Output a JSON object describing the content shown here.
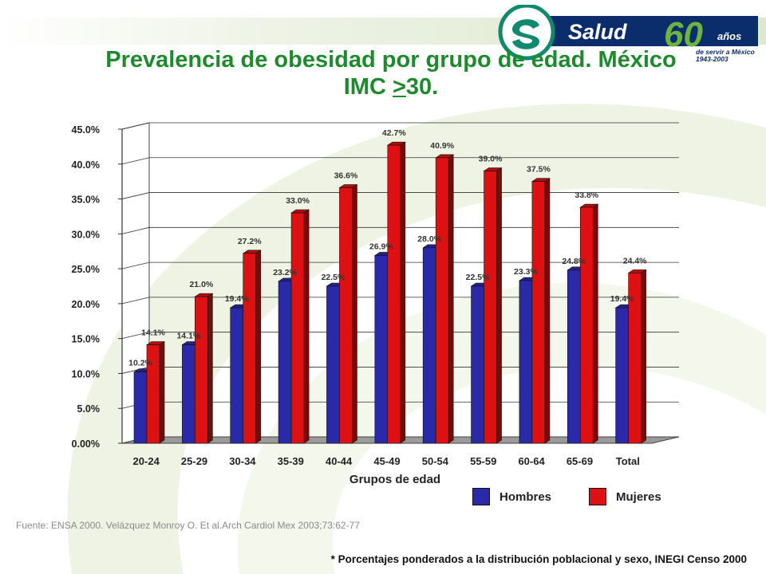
{
  "title_line1": "Prevalencia de obesidad por grupo de edad. México",
  "title_line2_prefix": "IMC ",
  "title_line2_gte": ">",
  "title_line2_value": "30.",
  "logo": {
    "brand": "Salud",
    "number": "60",
    "years": "años",
    "tagline": "de servir a México",
    "range": "1943-2003",
    "colors": {
      "teal": "#0f8a6e",
      "navy": "#0b2d6b",
      "green": "#6db33f"
    }
  },
  "chart_data": {
    "type": "bar",
    "xlabel": "Grupos de edad",
    "categories": [
      "20-24",
      "25-29",
      "30-34",
      "35-39",
      "40-44",
      "45-49",
      "50-54",
      "55-59",
      "60-64",
      "65-69",
      "Total"
    ],
    "series": [
      {
        "name": "Hombres",
        "color": "#2a2aa8",
        "values": [
          10.2,
          14.1,
          19.4,
          23.2,
          22.5,
          26.9,
          28.0,
          22.5,
          23.3,
          24.8,
          19.4
        ],
        "labels": [
          "10.2%",
          "14.1%",
          "19.4%",
          "23.2%",
          "22.5%",
          "26.9%",
          "28.0%",
          "22.5%",
          "23.3%",
          "24.8%",
          "19.4%"
        ]
      },
      {
        "name": "Mujeres",
        "color": "#dd1111",
        "values": [
          14.1,
          21.0,
          27.2,
          33.0,
          36.6,
          42.7,
          40.9,
          39.0,
          37.5,
          33.8,
          24.4
        ],
        "labels": [
          "14.1%",
          "21.0%",
          "27.2%",
          "33.0%",
          "36.6%",
          "42.7%",
          "40.9%",
          "39.0%",
          "37.5%",
          "33.8%",
          "24.4%"
        ]
      }
    ],
    "yticks": [
      "0.00%",
      "5.0%",
      "10.0%",
      "15.0%",
      "20.0%",
      "25.0%",
      "30.0%",
      "35.0%",
      "40.0%",
      "45.0%"
    ],
    "ylim": [
      0,
      45
    ],
    "grid": true,
    "legend": "bottom-right"
  },
  "source": "Fuente: ENSA 2000. Velázquez Monroy O. Et al.Arch Cardiol Mex 2003;73:62-77",
  "footnote": "* Porcentajes ponderados a la distribución poblacional y sexo, INEGI Censo 2000"
}
